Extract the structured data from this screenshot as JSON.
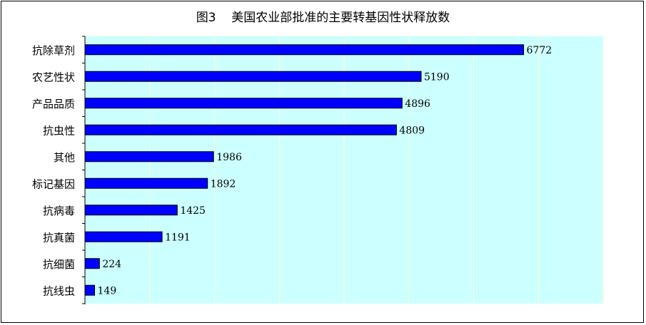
{
  "chart_data": {
    "type": "bar",
    "orientation": "horizontal",
    "title": "图3    美国农业部批准的主要转基因性状释放数",
    "xlabel": "",
    "ylabel": "",
    "xlim": [
      0,
      8000
    ],
    "x_gridlines": [
      1000,
      2000,
      3000,
      4000,
      5000,
      6000,
      7000,
      8000
    ],
    "grid": true,
    "legend": "none",
    "categories": [
      "抗除草剂",
      "农艺性状",
      "产品品质",
      "抗虫性",
      "其他",
      "标记基因",
      "抗病毒",
      "抗真菌",
      "抗细菌",
      "抗线虫"
    ],
    "values": [
      6772,
      5190,
      4896,
      4809,
      1986,
      1892,
      1425,
      1191,
      224,
      149
    ],
    "colors": {
      "bar_fill": "#0000ff",
      "bar_stroke": "#000000",
      "plot_background": "#ccffff",
      "gridline": "#ffffcc"
    }
  }
}
